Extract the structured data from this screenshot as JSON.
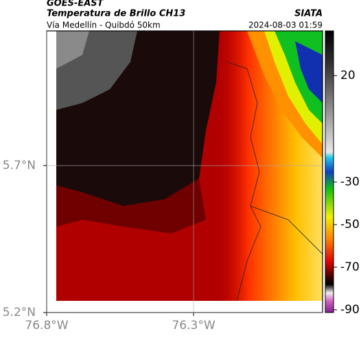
{
  "header": {
    "source": "GOES-EAST",
    "title": "Temperatura de Brillo CH13",
    "subtitle": "Vía Medellín - Quibdó 50km",
    "org": "SIATA",
    "datetime": "2024-08-03 01:59"
  },
  "map": {
    "xlim": [
      -76.8,
      -75.861
    ],
    "ylim": [
      5.2,
      6.158
    ],
    "xticks": [
      {
        "value": -76.8,
        "label": "76.8°W"
      },
      {
        "value": -76.3,
        "label": "76.3°W"
      }
    ],
    "yticks": [
      {
        "value": 5.2,
        "label": "5.2°N"
      },
      {
        "value": 5.7,
        "label": "5.7°N"
      }
    ],
    "grid": true
  },
  "colorbar": {
    "lim": [
      -91.3,
      41
    ],
    "ticks": [
      20,
      -30,
      -50,
      -70,
      -90
    ]
  }
}
